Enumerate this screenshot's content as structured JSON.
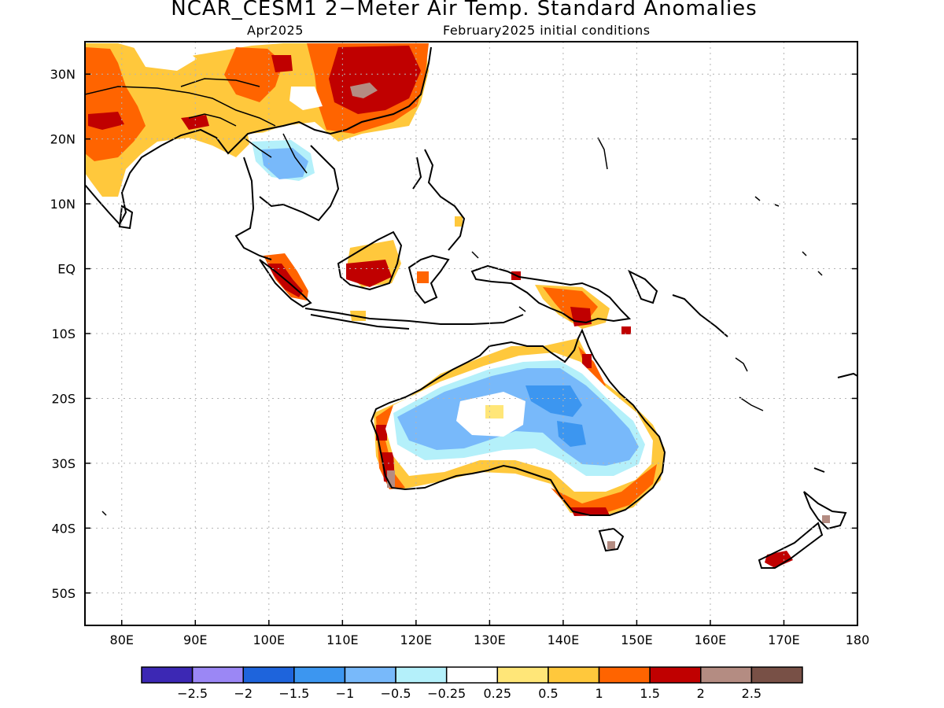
{
  "header": {
    "title": "NCAR_CESM1 2−Meter Air Temp. Standard Anomalies",
    "valid_month": "Apr2025",
    "init_conditions": "February2025 initial conditions"
  },
  "axes": {
    "lon_labels": [
      "80E",
      "90E",
      "100E",
      "110E",
      "120E",
      "130E",
      "140E",
      "150E",
      "160E",
      "170E",
      "180"
    ],
    "lat_labels": [
      "30N",
      "20N",
      "10N",
      "EQ",
      "10S",
      "20S",
      "30S",
      "40S",
      "50S"
    ],
    "lon_range": [
      75,
      180
    ],
    "lat_range": [
      -55,
      35
    ]
  },
  "colorbar": {
    "colors": [
      "#3c28b4",
      "#9b87f5",
      "#1e64dc",
      "#3c96f0",
      "#78b9fa",
      "#b4f0fa",
      "#ffffff",
      "#ffe678",
      "#ffc83c",
      "#ff6400",
      "#c00000",
      "#b48c82",
      "#785046"
    ],
    "labels": [
      "−2.5",
      "−2",
      "−1.5",
      "−1",
      "−0.5",
      "−0.25",
      "0.25",
      "0.5",
      "1",
      "1.5",
      "2",
      "2.5"
    ]
  },
  "colors": {
    "coast": "#000000",
    "grid": "#b4b4b4"
  }
}
